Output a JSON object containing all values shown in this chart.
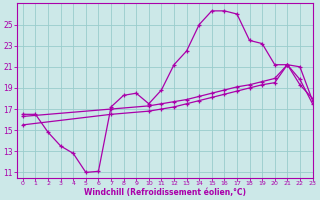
{
  "background_color": "#cce8e8",
  "grid_color": "#99cccc",
  "line_color": "#aa00aa",
  "marker": "+",
  "xlabel": "Windchill (Refroidissement éolien,°C)",
  "xlabel_color": "#aa00aa",
  "ylim": [
    10.5,
    27
  ],
  "xlim": [
    -0.5,
    23
  ],
  "yticks": [
    11,
    13,
    15,
    17,
    19,
    21,
    23,
    25
  ],
  "xticks": [
    0,
    1,
    2,
    3,
    4,
    5,
    6,
    7,
    8,
    9,
    10,
    11,
    12,
    13,
    14,
    15,
    16,
    17,
    18,
    19,
    20,
    21,
    22,
    23
  ],
  "line1_x": [
    0,
    1,
    2,
    3,
    4,
    5,
    6,
    7,
    8,
    9,
    10,
    11,
    12,
    13,
    14,
    15,
    16,
    17,
    18,
    19,
    20,
    21,
    22,
    23
  ],
  "line1_y": [
    16.5,
    16.5,
    14.8,
    13.5,
    12.8,
    11.0,
    11.1,
    17.2,
    18.3,
    18.5,
    17.5,
    18.8,
    21.2,
    22.5,
    25.0,
    26.3,
    26.3,
    26.0,
    23.5,
    23.2,
    21.2,
    21.2,
    19.3,
    18.0
  ],
  "line2_x": [
    0,
    7,
    10,
    11,
    12,
    13,
    14,
    15,
    16,
    17,
    18,
    19,
    20,
    21,
    22,
    23
  ],
  "line2_y": [
    16.3,
    17.0,
    17.3,
    17.5,
    17.7,
    17.9,
    18.2,
    18.5,
    18.8,
    19.1,
    19.3,
    19.6,
    19.9,
    21.2,
    21.0,
    17.8
  ],
  "line3_x": [
    0,
    7,
    10,
    11,
    12,
    13,
    14,
    15,
    16,
    17,
    18,
    19,
    20,
    21,
    22,
    23
  ],
  "line3_y": [
    15.5,
    16.5,
    16.8,
    17.0,
    17.2,
    17.5,
    17.8,
    18.1,
    18.4,
    18.7,
    19.0,
    19.3,
    19.5,
    21.2,
    19.8,
    17.5
  ]
}
